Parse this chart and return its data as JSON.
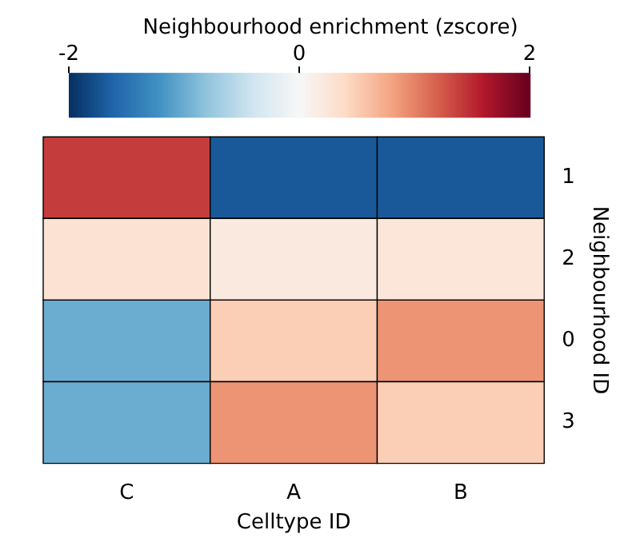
{
  "chart_data": {
    "type": "heatmap",
    "clabel": "Neighbourhood enrichment (zscore)",
    "xlabel": "Celltype ID",
    "ylabel": "Neighbourhood ID",
    "categories": [
      "C",
      "A",
      "B"
    ],
    "y_categories": [
      "1",
      "2",
      "0",
      "3"
    ],
    "cells": [
      [
        1.4,
        -1.7,
        -1.7
      ],
      [
        0.3,
        0.2,
        0.25
      ],
      [
        -1.0,
        0.5,
        0.9
      ],
      [
        -1.0,
        0.9,
        0.5
      ]
    ],
    "clim": [
      -2,
      2
    ],
    "cticks": [
      -2,
      0,
      2
    ]
  }
}
